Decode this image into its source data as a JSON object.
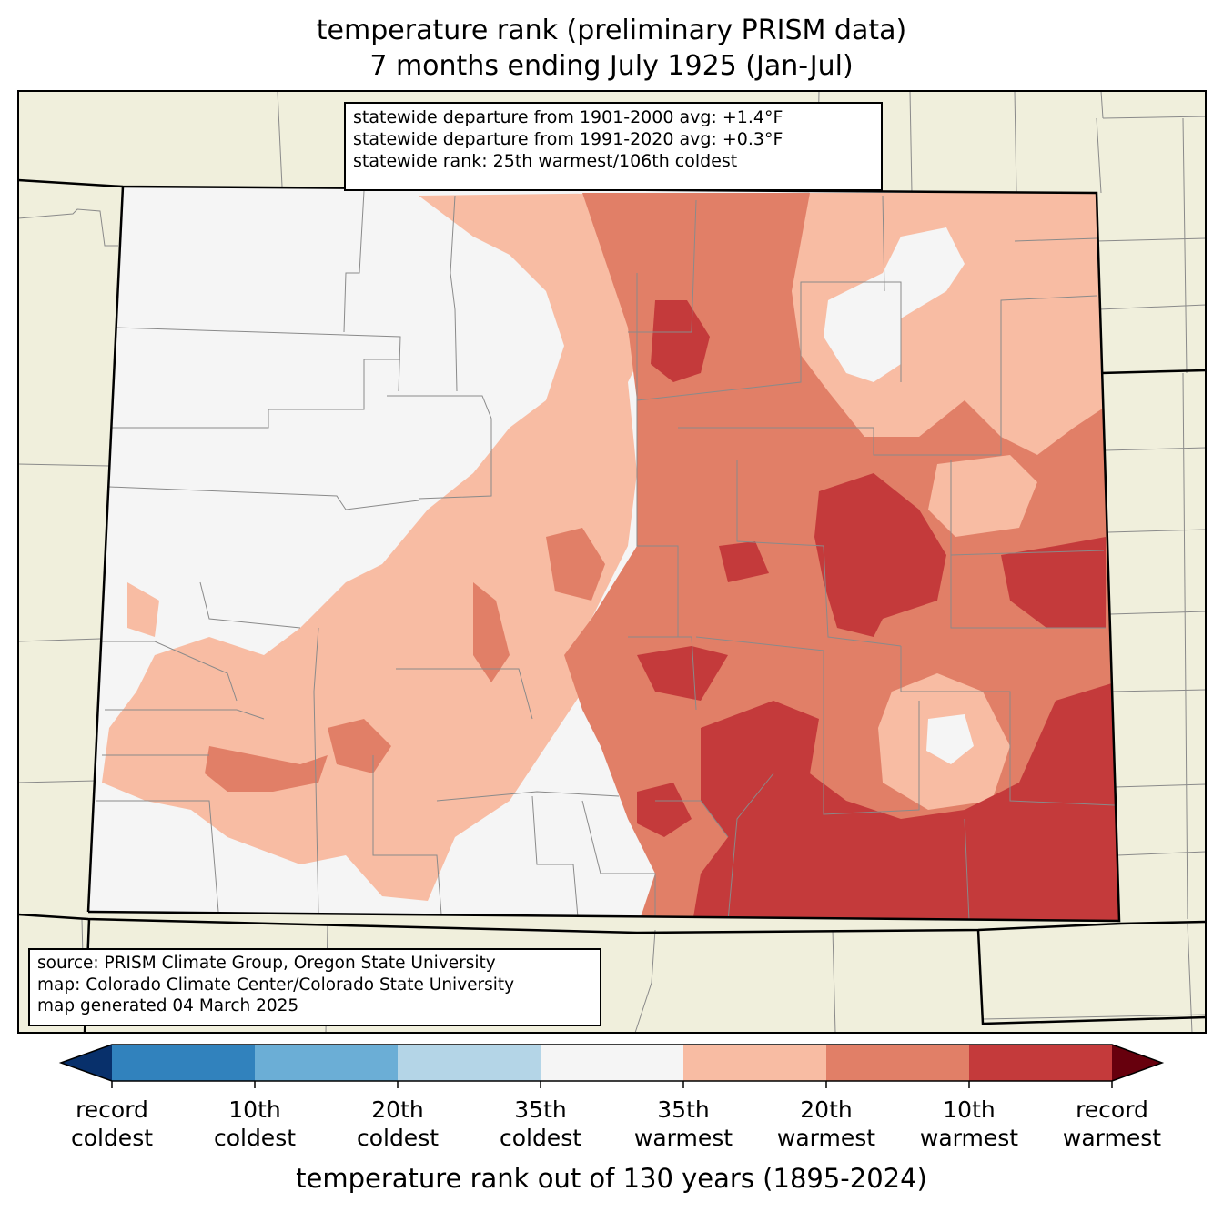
{
  "title": {
    "line1": "temperature rank (preliminary PRISM data)",
    "line2": "7 months ending July 1925 (Jan-Jul)"
  },
  "stats_box": {
    "line1": "statewide departure from 1901-2000 avg: +1.4°F",
    "line2": "statewide departure from 1991-2020 avg: +0.3°F",
    "line3": "statewide rank: 25th warmest/106th coldest"
  },
  "source_box": {
    "line1": "source: PRISM Climate Group, Oregon State University",
    "line2": "map: Colorado Climate Center/Colorado State University",
    "line3": "map generated 04 March 2025"
  },
  "colorbar": {
    "label": "temperature rank out of 130 years (1895-2024)",
    "ticks": [
      {
        "line1": "record",
        "line2": "coldest"
      },
      {
        "line1": "10th",
        "line2": "coldest"
      },
      {
        "line1": "20th",
        "line2": "coldest"
      },
      {
        "line1": "35th",
        "line2": "coldest"
      },
      {
        "line1": "35th",
        "line2": "warmest"
      },
      {
        "line1": "20th",
        "line2": "warmest"
      },
      {
        "line1": "10th",
        "line2": "warmest"
      },
      {
        "line1": "record",
        "line2": "warmest"
      }
    ],
    "colors": [
      "#08306b",
      "#3182bd",
      "#6baed6",
      "#b4d5e7",
      "#f5f5f5",
      "#f8bca3",
      "#e17f67",
      "#c43a3b",
      "#67000d"
    ]
  },
  "map_colors": {
    "background_land": "#f0efdc",
    "near_normal": "#f5f5f5",
    "warm_35": "#f8bca3",
    "warm_20": "#e17f67",
    "warm_10": "#c43a3b"
  }
}
